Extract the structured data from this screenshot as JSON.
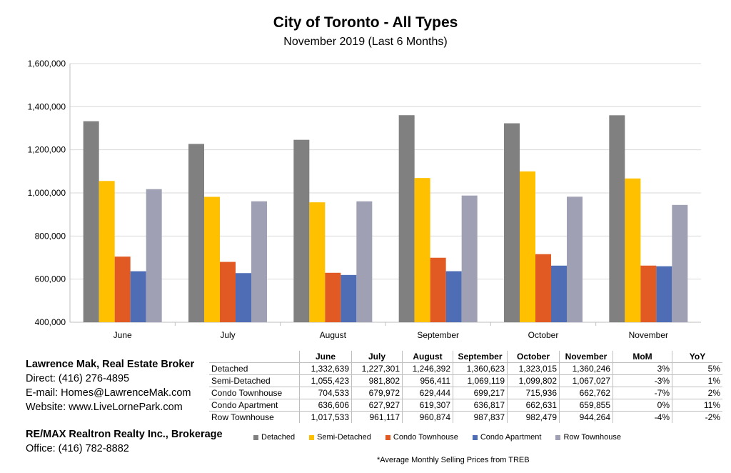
{
  "chart_data": {
    "type": "bar",
    "title": "City of Toronto - All Types",
    "subtitle": "November 2019 (Last 6 Months)",
    "categories": [
      "June",
      "July",
      "August",
      "September",
      "October",
      "November"
    ],
    "ylim": [
      400000,
      1600000
    ],
    "yticks": [
      "400,000",
      "600,000",
      "800,000",
      "1,000,000",
      "1,200,000",
      "1,400,000",
      "1,600,000"
    ],
    "grid": true,
    "legend_position": "bottom",
    "series": [
      {
        "name": "Detached",
        "color": "#808080",
        "values": [
          1332639,
          1227301,
          1246392,
          1360623,
          1323015,
          1360246
        ]
      },
      {
        "name": "Semi-Detached",
        "color": "#ffc000",
        "values": [
          1055423,
          981802,
          956411,
          1069119,
          1099802,
          1067027
        ]
      },
      {
        "name": "Condo Townhouse",
        "color": "#e15a24",
        "values": [
          704533,
          679972,
          629444,
          699217,
          715936,
          662762
        ]
      },
      {
        "name": "Condo Apartment",
        "color": "#4f6db5",
        "values": [
          636606,
          627927,
          619307,
          636817,
          662631,
          659855
        ]
      },
      {
        "name": "Row Townhouse",
        "color": "#a0a0b4",
        "values": [
          1017533,
          961117,
          960874,
          987837,
          982479,
          944264
        ]
      }
    ]
  },
  "table": {
    "headers": [
      "June",
      "July",
      "August",
      "September",
      "October",
      "November",
      "MoM",
      "YoY"
    ],
    "rows": [
      {
        "label": "Detached",
        "cells": [
          "1,332,639",
          "1,227,301",
          "1,246,392",
          "1,360,623",
          "1,323,015",
          "1,360,246",
          "3%",
          "5%"
        ]
      },
      {
        "label": "Semi-Detached",
        "cells": [
          "1,055,423",
          "981,802",
          "956,411",
          "1,069,119",
          "1,099,802",
          "1,067,027",
          "-3%",
          "1%"
        ]
      },
      {
        "label": "Condo Townhouse",
        "cells": [
          "704,533",
          "679,972",
          "629,444",
          "699,217",
          "715,936",
          "662,762",
          "-7%",
          "2%"
        ]
      },
      {
        "label": "Condo Apartment",
        "cells": [
          "636,606",
          "627,927",
          "619,307",
          "636,817",
          "662,631",
          "659,855",
          "0%",
          "11%"
        ]
      },
      {
        "label": "Row Townhouse",
        "cells": [
          "1,017,533",
          "961,117",
          "960,874",
          "987,837",
          "982,479",
          "944,264",
          "-4%",
          "-2%"
        ]
      }
    ]
  },
  "broker": {
    "name": "Lawrence Mak, Real Estate Broker",
    "direct": "Direct:  (416) 276-4895",
    "email": "E-mail:  Homes@LawrenceMak.com",
    "website": "Website: www.LiveLornePark.com"
  },
  "brokerage": {
    "name": "RE/MAX Realtron Realty Inc., Brokerage",
    "office": "Office: (416) 782-8882"
  },
  "footnote": "*Average Monthly Selling Prices  from TREB"
}
